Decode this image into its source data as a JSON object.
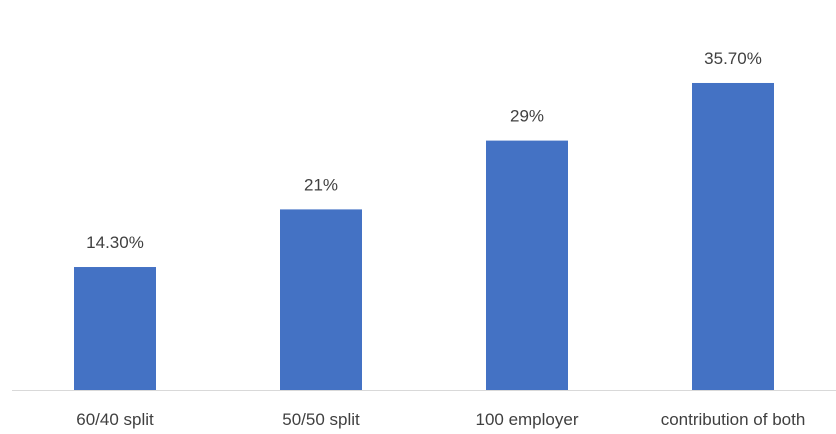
{
  "chart_data": {
    "type": "bar",
    "categories": [
      "60/40 split",
      "50/50 split",
      "100 employer",
      "contribution of both"
    ],
    "values": [
      14.3,
      21,
      29,
      35.7
    ],
    "data_labels": [
      "14.30%",
      "21%",
      "29%",
      "35.70%"
    ],
    "title": "",
    "xlabel": "",
    "ylabel": "",
    "ylim": [
      0,
      40
    ],
    "grid": false,
    "legend": "none",
    "bar_color": "#4472C4",
    "axis_color": "#D9D9D9",
    "text_color": "#404040"
  }
}
